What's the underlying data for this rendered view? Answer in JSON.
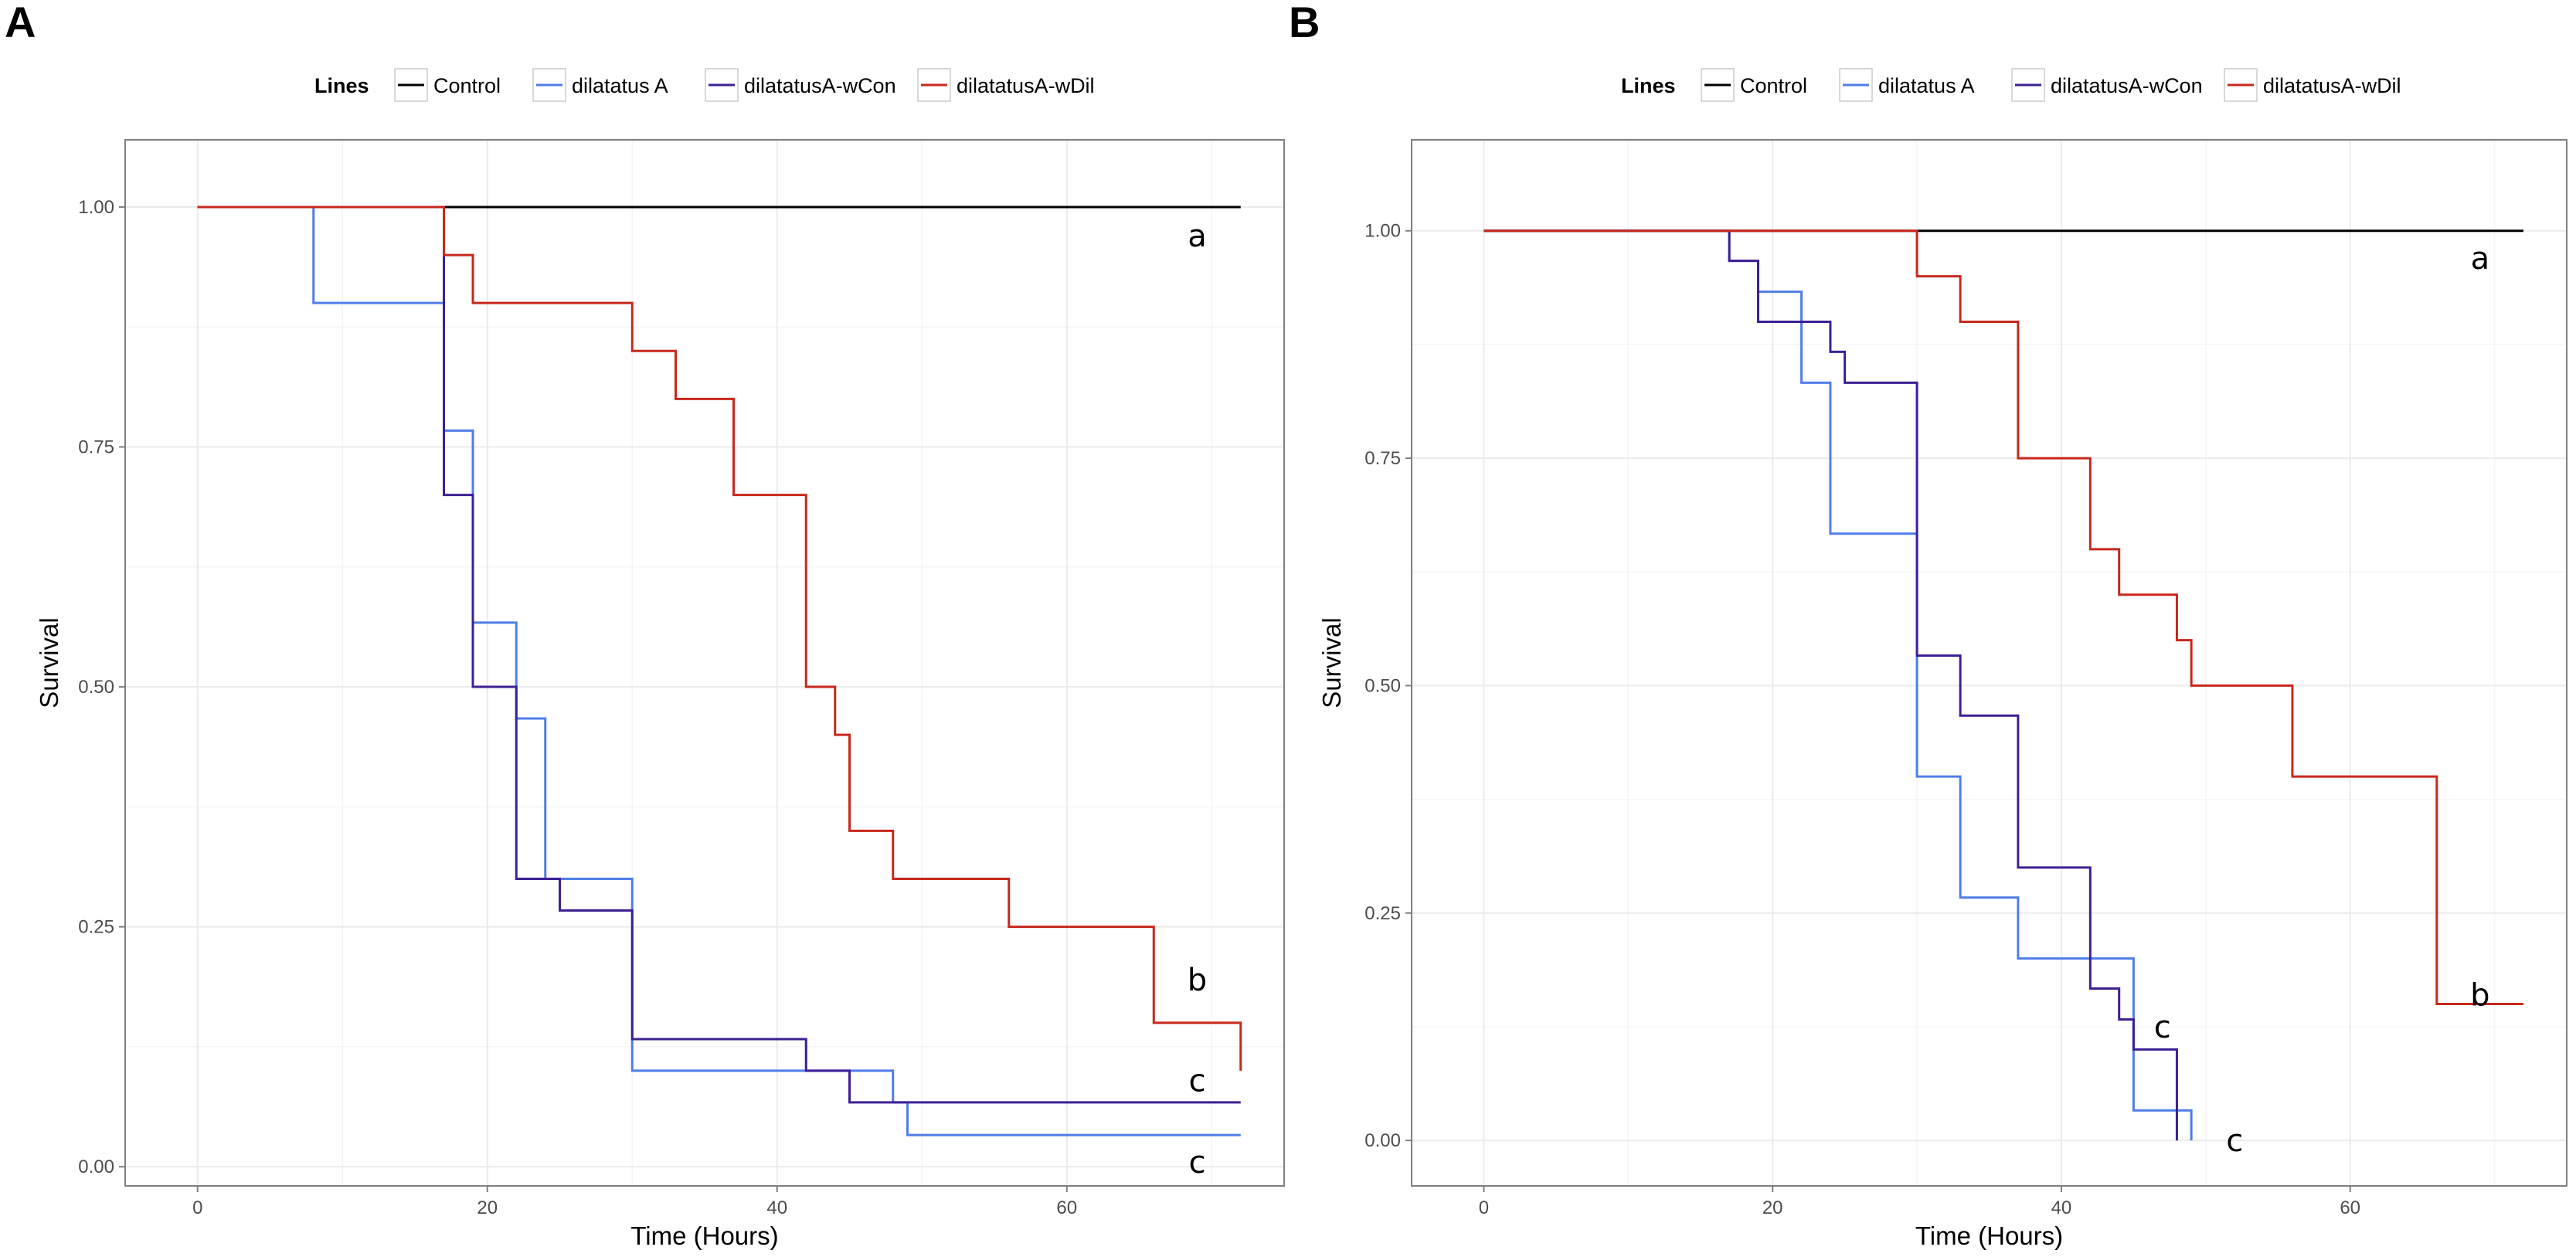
{
  "chart_data": [
    {
      "panel": "A",
      "type": "line",
      "step": true,
      "title": "",
      "xlabel": "Time (Hours)",
      "ylabel": "Survival",
      "xlim": [
        -5,
        75
      ],
      "ylim": [
        -0.02,
        1.07
      ],
      "xticks": [
        0,
        20,
        40,
        60
      ],
      "yticks": [
        0.0,
        0.25,
        0.5,
        0.75,
        1.0
      ],
      "ytick_labels": [
        "0.00",
        "0.25",
        "0.50",
        "0.75",
        "1.00"
      ],
      "grid": true,
      "legend": {
        "title": "Lines",
        "placement": "top",
        "entries": [
          "Control",
          "dilatatus A",
          "dilatatusA-wCon",
          "dilatatusA-wDil"
        ]
      },
      "series": [
        {
          "name": "Control",
          "color": "#000000",
          "x": [
            0,
            72
          ],
          "y": [
            1.0,
            1.0
          ]
        },
        {
          "name": "dilatatus A",
          "color": "#4f7de8",
          "x": [
            0,
            8,
            17,
            19,
            22,
            24,
            30,
            42,
            48,
            49,
            72
          ],
          "y": [
            1.0,
            0.9,
            0.767,
            0.567,
            0.467,
            0.3,
            0.1,
            0.1,
            0.067,
            0.033,
            0.033
          ]
        },
        {
          "name": "dilatatusA-wCon",
          "color": "#3d1f94",
          "x": [
            0,
            17,
            19,
            22,
            25,
            30,
            42,
            45,
            72
          ],
          "y": [
            1.0,
            0.7,
            0.5,
            0.3,
            0.267,
            0.133,
            0.1,
            0.067,
            0.067
          ]
        },
        {
          "name": "dilatatusA-wDil",
          "color": "#c7281c",
          "x": [
            0,
            17,
            18,
            19,
            30,
            33,
            37,
            42,
            44,
            45,
            48,
            56,
            66,
            72
          ],
          "y": [
            1.0,
            0.95,
            0.95,
            0.9,
            0.85,
            0.8,
            0.7,
            0.5,
            0.45,
            0.35,
            0.3,
            0.25,
            0.15,
            0.1
          ]
        }
      ],
      "annotations": [
        {
          "text": "a",
          "x": 69,
          "y": 0.97
        },
        {
          "text": "b",
          "x": 69,
          "y": 0.195
        },
        {
          "text": "c",
          "x": 69,
          "y": 0.09
        },
        {
          "text": "c",
          "x": 69,
          "y": 0.005
        }
      ]
    },
    {
      "panel": "B",
      "type": "line",
      "step": true,
      "title": "",
      "xlabel": "Time (Hours)",
      "ylabel": "Survival",
      "xlim": [
        -5,
        75
      ],
      "ylim": [
        -0.05,
        1.1
      ],
      "xticks": [
        0,
        20,
        40,
        60
      ],
      "yticks": [
        0.0,
        0.25,
        0.5,
        0.75,
        1.0
      ],
      "ytick_labels": [
        "0.00",
        "0.25",
        "0.50",
        "0.75",
        "1.00"
      ],
      "grid": true,
      "legend": {
        "title": "Lines",
        "placement": "top",
        "entries": [
          "Control",
          "dilatatus A",
          "dilatatusA-wCon",
          "dilatatusA-wDil"
        ]
      },
      "series": [
        {
          "name": "Control",
          "color": "#000000",
          "x": [
            0,
            72
          ],
          "y": [
            1.0,
            1.0
          ]
        },
        {
          "name": "dilatatus A",
          "color": "#4f7de8",
          "x": [
            0,
            17,
            19,
            22,
            24,
            30,
            33,
            37,
            42,
            45,
            49
          ],
          "y": [
            1.0,
            0.967,
            0.933,
            0.833,
            0.667,
            0.4,
            0.267,
            0.2,
            0.2,
            0.033,
            0.0
          ]
        },
        {
          "name": "dilatatusA-wCon",
          "color": "#3d1f94",
          "x": [
            0,
            17,
            19,
            24,
            25,
            30,
            33,
            37,
            42,
            44,
            45,
            48
          ],
          "y": [
            1.0,
            0.967,
            0.9,
            0.867,
            0.833,
            0.533,
            0.467,
            0.3,
            0.167,
            0.133,
            0.1,
            0.0
          ]
        },
        {
          "name": "dilatatusA-wDil",
          "color": "#c7281c",
          "x": [
            0,
            30,
            33,
            37,
            42,
            44,
            48,
            49,
            56,
            66,
            72
          ],
          "y": [
            1.0,
            0.95,
            0.9,
            0.75,
            0.65,
            0.6,
            0.55,
            0.5,
            0.4,
            0.15,
            0.15
          ]
        }
      ],
      "annotations": [
        {
          "text": "a",
          "x": 69,
          "y": 0.97
        },
        {
          "text": "b",
          "x": 69,
          "y": 0.16
        },
        {
          "text": "c",
          "x": 47,
          "y": 0.125
        },
        {
          "text": "c",
          "x": 52,
          "y": 0.0
        }
      ]
    }
  ]
}
